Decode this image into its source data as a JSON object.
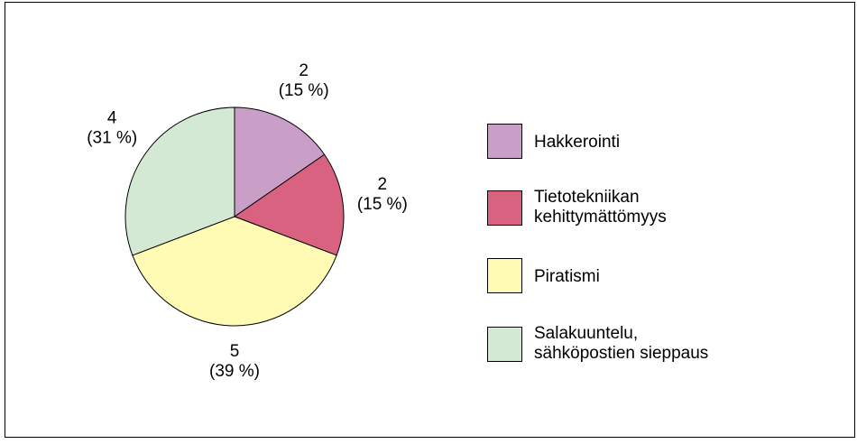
{
  "chart_data": {
    "type": "pie",
    "categories": [
      "Hakkerointi",
      "Tietotekniikan\nkehittymättömyys",
      "Piratismi",
      "Salakuuntelu,\nsähköpostien sieppaus"
    ],
    "values": [
      2,
      2,
      5,
      4
    ],
    "percent_labels": [
      "(15 %)",
      "(15 %)",
      "(39 %)",
      "(31 %)"
    ],
    "colors": [
      "#c99fc7",
      "#d8627f",
      "#fffbb4",
      "#d4e9d4"
    ],
    "legend": "right"
  }
}
